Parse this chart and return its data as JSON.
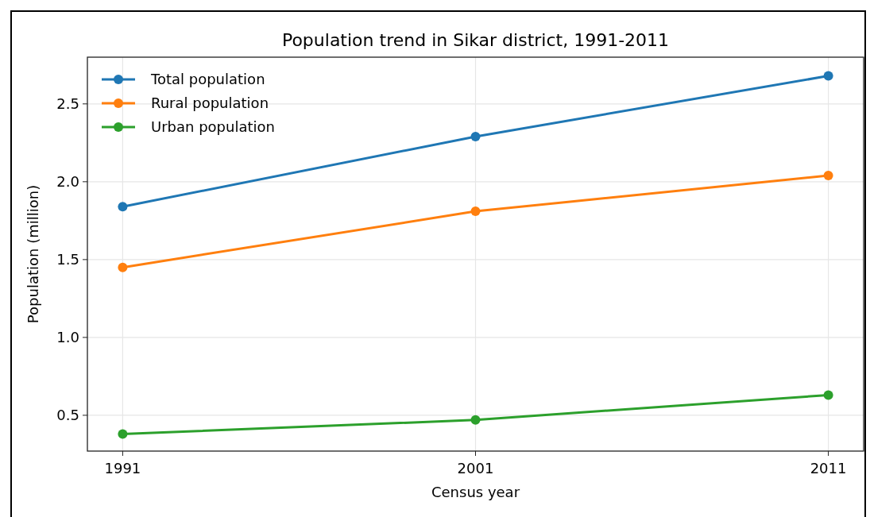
{
  "chart_data": {
    "type": "line",
    "title": "Population trend in Sikar district, 1991-2011",
    "xlabel": "Census year",
    "ylabel": "Population (million)",
    "x": [
      1991,
      2001,
      2011
    ],
    "xlim": [
      1990,
      2012
    ],
    "xticks": [
      1991,
      2001,
      2011
    ],
    "ylim": [
      0.27,
      2.8
    ],
    "yticks": [
      0.5,
      {
        "value": 1,
        "label": "1.0"
      },
      1.5,
      {
        "value": 2,
        "label": "2.0"
      },
      2.5
    ],
    "series": [
      {
        "name": "Total population",
        "color": "#1f77b4",
        "values": [
          1.84,
          2.29,
          2.68
        ]
      },
      {
        "name": "Rural population",
        "color": "#ff7f0e",
        "values": [
          1.45,
          1.81,
          2.04
        ]
      },
      {
        "name": "Urban population",
        "color": "#2ca02c",
        "values": [
          0.38,
          0.47,
          0.63
        ]
      }
    ],
    "grid": true,
    "legend": "top left",
    "marker": "circle",
    "line_style": "solid"
  }
}
